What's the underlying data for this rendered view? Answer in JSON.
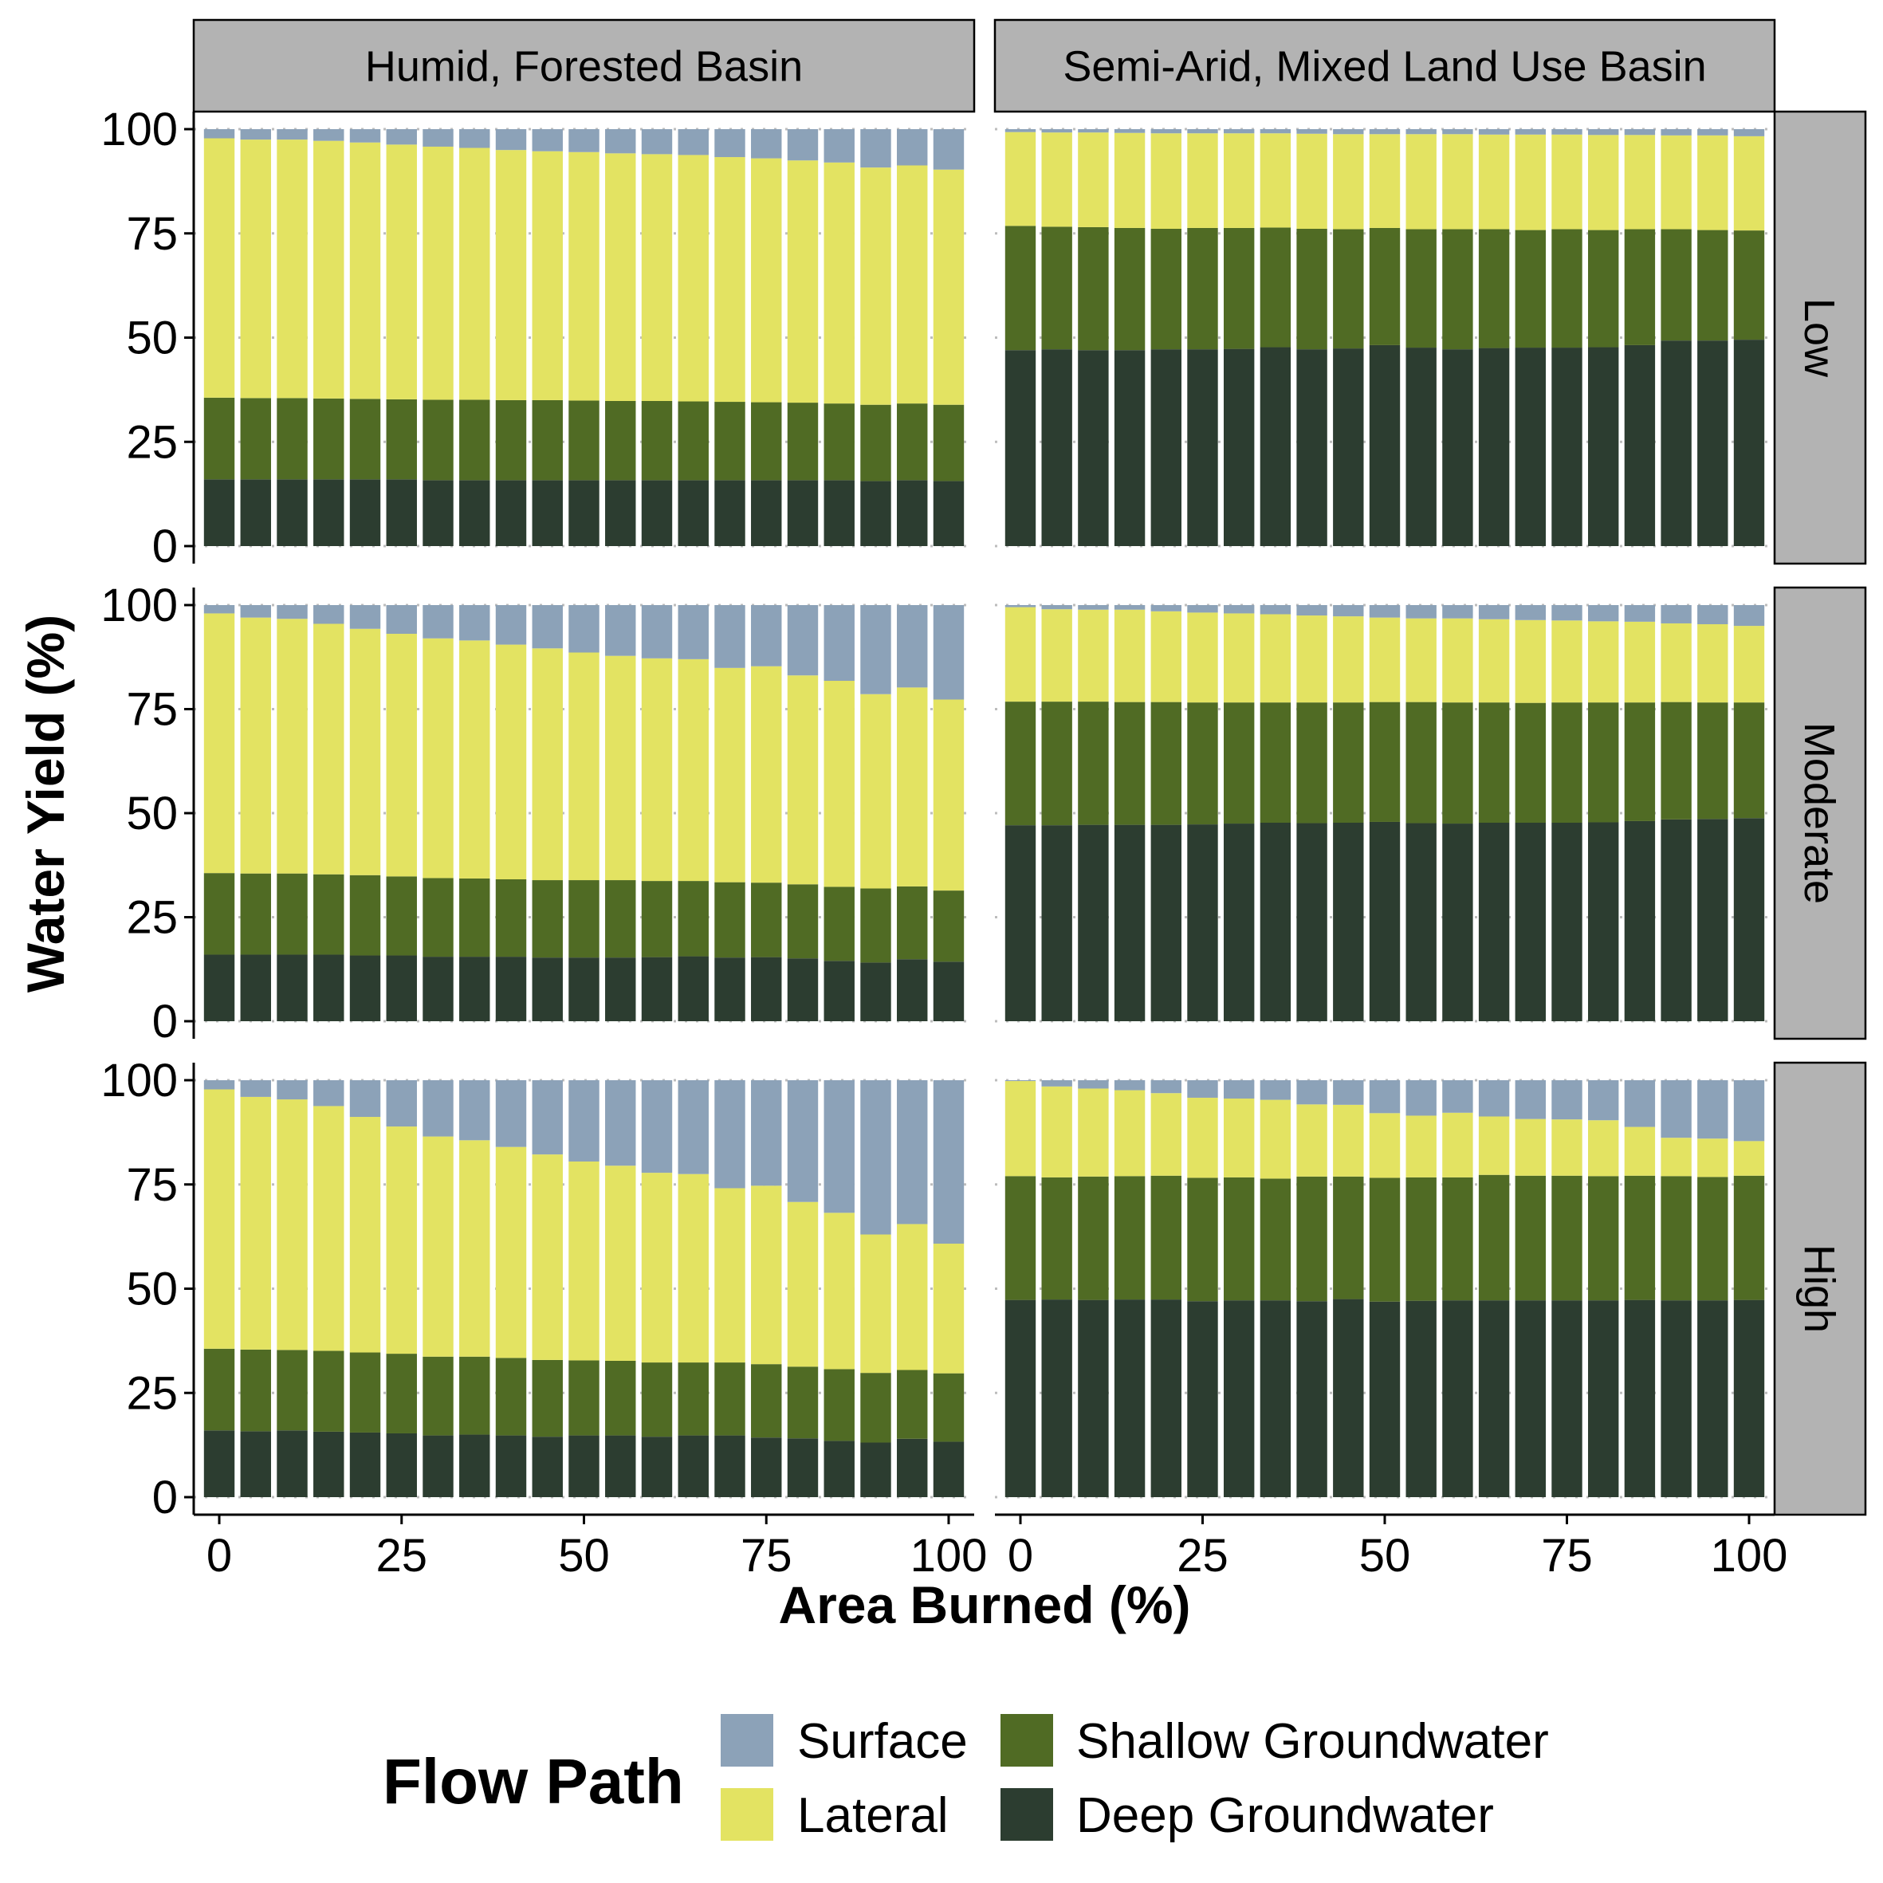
{
  "chart_data": {
    "type": "bar",
    "stacked": true,
    "xlabel": "Area Burned (%)",
    "ylabel": "Water Yield (%)",
    "xlim": [
      -3.5,
      103.5
    ],
    "ylim": [
      0,
      100
    ],
    "x_ticks": [
      0,
      25,
      50,
      75,
      100
    ],
    "y_ticks": [
      0,
      25,
      50,
      75,
      100
    ],
    "grid": "horizontal dotted",
    "legend": {
      "title": "Flow Path",
      "position": "bottom",
      "entries": [
        "Surface",
        "Lateral",
        "Shallow Groundwater",
        "Deep Groundwater"
      ]
    },
    "columns": [
      "Humid, Forested Basin",
      "Semi-Arid, Mixed Land Use Basin"
    ],
    "rows": [
      "Low",
      "Moderate",
      "High"
    ],
    "series_order": [
      "Deep Groundwater",
      "Shallow Groundwater",
      "Lateral",
      "Surface"
    ],
    "colors": {
      "Surface": "#8ca2b8",
      "Lateral": "#e3e362",
      "Shallow Groundwater": "#506b24",
      "Deep Groundwater": "#2c3d30"
    },
    "x": [
      0,
      5,
      10,
      15,
      20,
      25,
      30,
      35,
      40,
      45,
      50,
      55,
      60,
      65,
      70,
      75,
      80,
      85,
      90,
      95,
      100
    ],
    "panels": [
      {
        "column": "Humid, Forested Basin",
        "row": "Low",
        "deep_top": [
          16,
          16,
          16,
          16,
          16,
          16,
          15.8,
          15.8,
          15.8,
          15.8,
          15.8,
          15.8,
          15.8,
          15.8,
          15.8,
          15.8,
          15.8,
          15.8,
          15.6,
          15.8,
          15.6
        ],
        "shallow_top": [
          35.6,
          35.5,
          35.5,
          35.4,
          35.3,
          35.2,
          35.1,
          35.1,
          35,
          35,
          34.9,
          34.8,
          34.8,
          34.7,
          34.6,
          34.5,
          34.4,
          34.2,
          33.9,
          34.2,
          33.9
        ],
        "lateral_top": [
          97.8,
          97.5,
          97.5,
          97.2,
          96.8,
          96.3,
          95.8,
          95.5,
          95,
          94.7,
          94.5,
          94.2,
          94,
          93.8,
          93.3,
          93,
          92.5,
          92,
          90.8,
          91.3,
          90.3
        ]
      },
      {
        "column": "Semi-Arid, Mixed Land Use Basin",
        "row": "Low",
        "deep_top": [
          47,
          47.2,
          47,
          47,
          47.2,
          47.2,
          47.3,
          47.7,
          47.2,
          47.4,
          48.2,
          47.6,
          47.2,
          47.5,
          47.6,
          47.6,
          47.7,
          48.2,
          49.3,
          49.3,
          49.5
        ],
        "shallow_top": [
          76.8,
          76.6,
          76.5,
          76.3,
          76.1,
          76.3,
          76.3,
          76.4,
          76.1,
          76,
          76.3,
          76,
          76,
          76,
          75.8,
          76,
          75.8,
          76,
          76,
          75.8,
          75.7
        ],
        "lateral_top": [
          99.3,
          99.2,
          99.2,
          99.1,
          99,
          99,
          99,
          99,
          98.9,
          98.8,
          98.8,
          98.8,
          98.8,
          98.7,
          98.7,
          98.7,
          98.6,
          98.6,
          98.5,
          98.5,
          98.3
        ]
      },
      {
        "column": "Humid, Forested Basin",
        "row": "Moderate",
        "deep_top": [
          16,
          16,
          16,
          16,
          15.8,
          15.8,
          15.5,
          15.5,
          15.5,
          15.3,
          15.3,
          15.3,
          15.4,
          15.6,
          15.3,
          15.4,
          15.1,
          14.5,
          14.1,
          14.9,
          14.3
        ],
        "shallow_top": [
          35.6,
          35.5,
          35.5,
          35.3,
          35.1,
          34.8,
          34.4,
          34.3,
          34.1,
          33.9,
          33.9,
          33.9,
          33.7,
          33.7,
          33.4,
          33.3,
          32.9,
          32.3,
          31.9,
          32.4,
          31.4
        ],
        "lateral_top": [
          98,
          97,
          96.7,
          95.5,
          94.3,
          93.1,
          92,
          91.5,
          90.5,
          89.6,
          88.6,
          87.8,
          87.2,
          87,
          84.9,
          85.3,
          83.1,
          81.8,
          78.6,
          80.2,
          77.3
        ]
      },
      {
        "column": "Semi-Arid, Mixed Land Use Basin",
        "row": "Moderate",
        "deep_top": [
          47.1,
          47.1,
          47.2,
          47.2,
          47.2,
          47.3,
          47.5,
          47.7,
          47.6,
          47.7,
          47.9,
          47.6,
          47.5,
          47.7,
          47.7,
          47.7,
          47.8,
          48.1,
          48.5,
          48.6,
          48.8
        ],
        "shallow_top": [
          76.8,
          76.8,
          76.8,
          76.7,
          76.7,
          76.6,
          76.6,
          76.6,
          76.6,
          76.6,
          76.7,
          76.7,
          76.6,
          76.6,
          76.5,
          76.6,
          76.6,
          76.6,
          76.7,
          76.6,
          76.6
        ],
        "lateral_top": [
          99.5,
          99,
          98.9,
          98.9,
          98.5,
          98.2,
          98,
          97.8,
          97.5,
          97.3,
          97,
          96.8,
          96.8,
          96.6,
          96.4,
          96.3,
          96.1,
          96,
          95.6,
          95.4,
          95
        ]
      },
      {
        "column": "Humid, Forested Basin",
        "row": "High",
        "deep_top": [
          16,
          15.8,
          16,
          15.7,
          15.5,
          15.3,
          14.8,
          15,
          14.8,
          14.5,
          14.8,
          14.8,
          14.5,
          14.8,
          14.8,
          14.3,
          14.1,
          13.5,
          13.1,
          14,
          13.3
        ],
        "shallow_top": [
          35.6,
          35.4,
          35.3,
          35.1,
          34.7,
          34.4,
          33.7,
          33.7,
          33.4,
          32.9,
          32.8,
          32.7,
          32.3,
          32.3,
          32.3,
          31.9,
          31.3,
          30.7,
          29.8,
          30.5,
          29.7
        ],
        "lateral_top": [
          97.8,
          96,
          95.4,
          93.8,
          91.2,
          88.9,
          86.5,
          85.6,
          84,
          82.2,
          80.5,
          79.5,
          77.8,
          77.5,
          74.1,
          74.7,
          70.8,
          68.2,
          63,
          65.5,
          60.8
        ]
      },
      {
        "column": "Semi-Arid, Mixed Land Use Basin",
        "row": "High",
        "deep_top": [
          47.3,
          47.4,
          47.3,
          47.4,
          47.4,
          47,
          47.2,
          47.2,
          47,
          47.5,
          46.9,
          47.1,
          47.2,
          47.2,
          47.2,
          47.2,
          47.2,
          47.3,
          47.2,
          47.2,
          47.3
        ],
        "shallow_top": [
          77,
          76.7,
          76.9,
          77,
          77.1,
          76.6,
          76.7,
          76.4,
          76.9,
          76.9,
          76.6,
          76.7,
          76.7,
          77.3,
          77.1,
          77.1,
          77,
          77.1,
          77,
          76.8,
          77.1
        ],
        "lateral_top": [
          99.8,
          98.5,
          98,
          97.6,
          96.9,
          95.8,
          95.6,
          95.3,
          94.2,
          94.1,
          92.1,
          91.5,
          92.2,
          91.3,
          90.7,
          90.6,
          90.4,
          88.8,
          86.2,
          86,
          85.4
        ]
      }
    ]
  }
}
